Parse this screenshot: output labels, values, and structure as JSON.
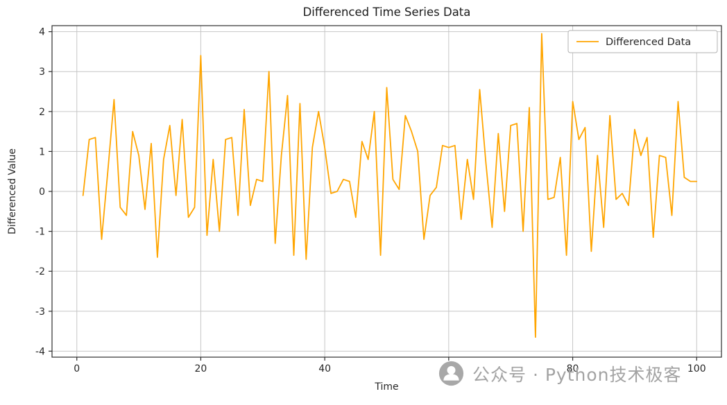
{
  "chart_data": {
    "type": "line",
    "title": "Differenced Time Series Data",
    "xlabel": "Time",
    "ylabel": "Differenced Value",
    "xlim": [
      -4,
      104
    ],
    "ylim": [
      -4.15,
      4.15
    ],
    "x_ticks": [
      0,
      20,
      40,
      60,
      80,
      100
    ],
    "y_ticks": [
      -4,
      -3,
      -2,
      -1,
      0,
      1,
      2,
      3,
      4
    ],
    "grid": true,
    "grid_color": "#c6c6c6",
    "legend": {
      "position": "upper right",
      "entries": [
        {
          "label": "Differenced Data",
          "color": "#FFA500"
        }
      ]
    },
    "series": [
      {
        "name": "Differenced Data",
        "color": "#FFA500",
        "x_start": 1,
        "values": [
          -0.1,
          1.3,
          1.35,
          -1.2,
          0.5,
          2.3,
          -0.4,
          -0.6,
          1.5,
          0.9,
          -0.45,
          1.2,
          -1.65,
          0.8,
          1.65,
          -0.1,
          1.8,
          -0.65,
          -0.4,
          3.4,
          -1.1,
          0.8,
          -1.0,
          1.3,
          1.35,
          -0.6,
          2.05,
          -0.35,
          0.3,
          0.25,
          3.0,
          -1.3,
          0.9,
          2.4,
          -1.6,
          2.2,
          -1.7,
          1.1,
          2.0,
          1.1,
          -0.05,
          0.0,
          0.3,
          0.25,
          -0.65,
          1.25,
          0.8,
          2.0,
          -1.6,
          2.6,
          0.3,
          0.05,
          1.9,
          1.5,
          1.0,
          -1.2,
          -0.1,
          0.1,
          1.15,
          1.1,
          1.15,
          -0.7,
          0.8,
          -0.2,
          2.55,
          0.7,
          -0.9,
          1.45,
          -0.5,
          1.65,
          1.7,
          -1.0,
          2.1,
          -3.65,
          3.95,
          -0.2,
          -0.15,
          0.85,
          -1.6,
          2.25,
          1.3,
          1.6,
          -1.5,
          0.9,
          -0.9,
          1.9,
          -0.2,
          -0.05,
          -0.35,
          1.55,
          0.9,
          1.35,
          -1.15,
          0.9,
          0.85,
          -0.6,
          2.25,
          0.35,
          0.25,
          0.25
        ]
      }
    ]
  },
  "watermark": {
    "text": "公众号 · Python技术极客",
    "color": "#a3a3a3",
    "icon_color": "#a8a8a8"
  }
}
